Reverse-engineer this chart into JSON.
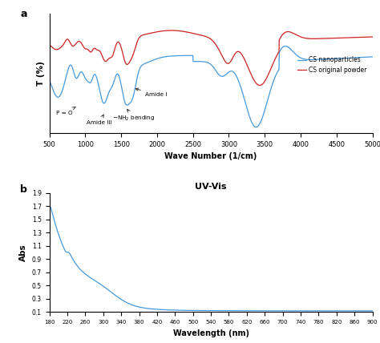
{
  "panel_a": {
    "xlabel": "Wave Number (1/cm)",
    "ylabel": "T (%)",
    "xlim": [
      500,
      5000
    ],
    "xticks": [
      500,
      1000,
      1500,
      2000,
      2500,
      3000,
      3500,
      4000,
      4500,
      5000
    ],
    "line_blue_color": "#4499dd",
    "line_red_color": "#cc2222",
    "legend_blue": "CS nanoparticles",
    "legend_red": "CS original powder"
  },
  "panel_b": {
    "title": "UV-Vis",
    "xlabel": "Wavelength (nm)",
    "ylabel": "Abs",
    "xlim": [
      180,
      900
    ],
    "ylim": [
      0.1,
      1.9
    ],
    "xticks": [
      180,
      220,
      260,
      300,
      340,
      380,
      420,
      460,
      500,
      540,
      580,
      620,
      660,
      700,
      740,
      780,
      820,
      860,
      900
    ],
    "yticks": [
      0.1,
      0.3,
      0.5,
      0.7,
      0.9,
      1.1,
      1.3,
      1.5,
      1.7,
      1.9
    ],
    "line_color": "#4499dd"
  },
  "background_color": "#ffffff"
}
